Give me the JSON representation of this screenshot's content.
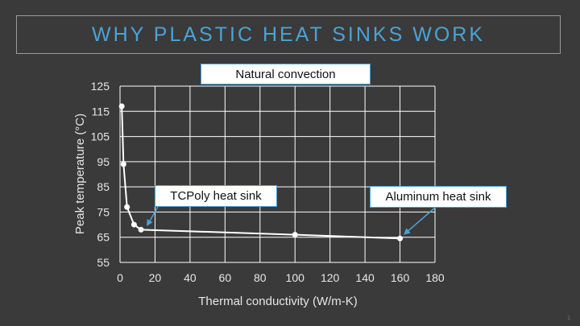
{
  "slide": {
    "title": "WHY PLASTIC HEAT SINKS WORK",
    "number": "1"
  },
  "chart_data": {
    "type": "line",
    "title": "Natural convection",
    "xlabel": "Thermal conductivity (W/m-K)",
    "ylabel": "Peak temperature (°C)",
    "xlim": [
      0,
      180
    ],
    "ylim": [
      55,
      125
    ],
    "xticks": [
      0,
      20,
      40,
      60,
      80,
      100,
      120,
      140,
      160,
      180
    ],
    "yticks": [
      55,
      65,
      75,
      85,
      95,
      105,
      115,
      125
    ],
    "grid": true,
    "series": [
      {
        "x": [
          1,
          2,
          4,
          8,
          12,
          100,
          160
        ],
        "y": [
          117,
          94,
          77,
          70,
          68,
          66,
          64.5
        ]
      }
    ],
    "annotations": [
      {
        "text": "TCPoly heat sink",
        "x": 12,
        "y": 68
      },
      {
        "text": "Aluminum heat sink",
        "x": 160,
        "y": 64.5
      }
    ],
    "colors": {
      "background": "#3a3a3a",
      "line": "#ffffff",
      "grid": "#ffffff",
      "accent": "#4aa3d6",
      "text": "#e6e6e6"
    }
  }
}
